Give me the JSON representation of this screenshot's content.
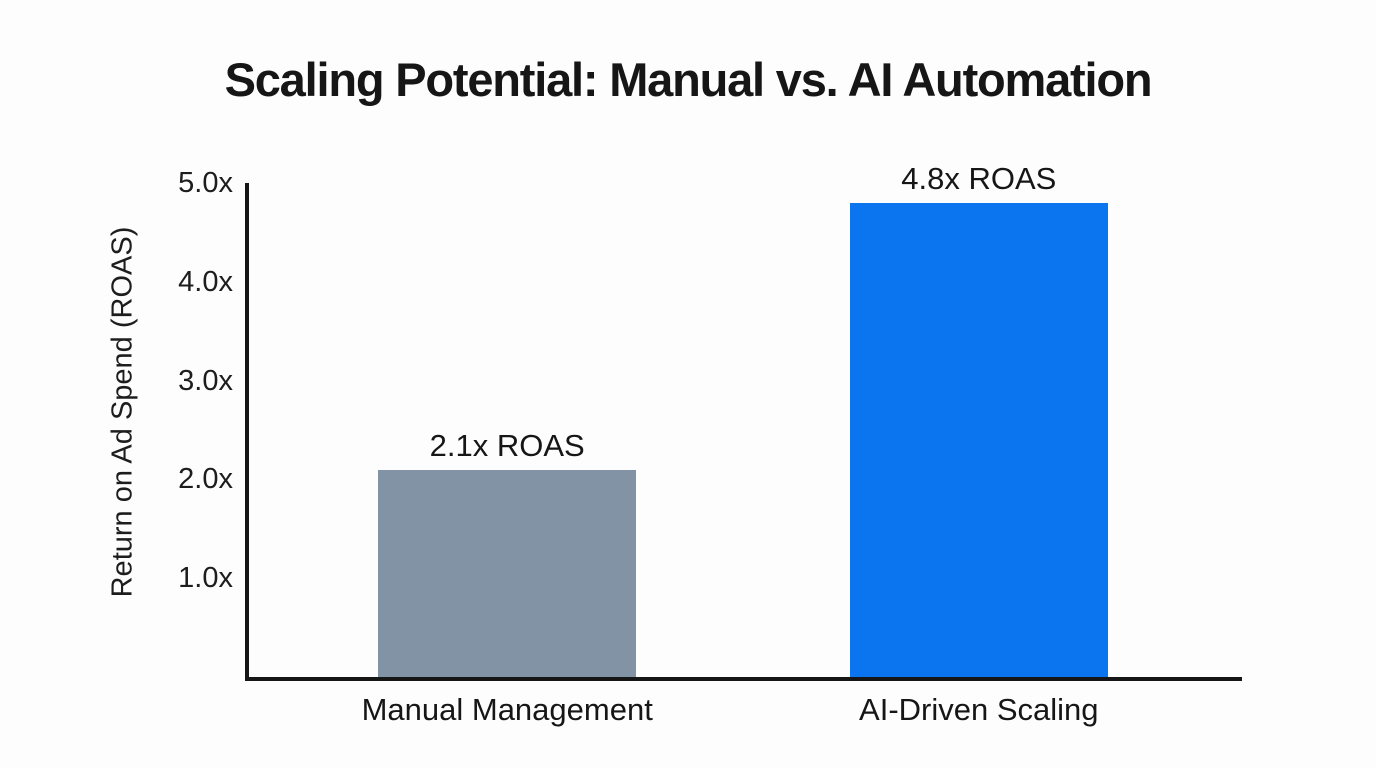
{
  "page": {
    "background_color": "#fdfdfd",
    "axis_color": "#161616",
    "text_color": "#1a1a1a"
  },
  "chart_data": {
    "type": "bar",
    "title": "Scaling Potential: Manual vs. AI Automation",
    "xlabel": "",
    "ylabel": "Return on Ad Spend (ROAS)",
    "categories": [
      "Manual Management",
      "AI-Driven Scaling"
    ],
    "values": [
      2.1,
      4.8
    ],
    "value_labels": [
      "2.1x ROAS",
      "4.8x ROAS"
    ],
    "bar_colors": [
      "#8193a4",
      "#0b75f0"
    ],
    "ylim": [
      0,
      5
    ],
    "yticks": {
      "values": [
        1,
        2,
        3,
        4,
        5
      ],
      "labels": [
        "1.0x",
        "2.0x",
        "3.0x",
        "4.0x",
        "5.0x"
      ]
    },
    "grid": false,
    "legend": "none",
    "layout": {
      "bar_centers_frac": [
        0.263,
        0.736
      ],
      "bar_width_frac": 0.259
    }
  }
}
